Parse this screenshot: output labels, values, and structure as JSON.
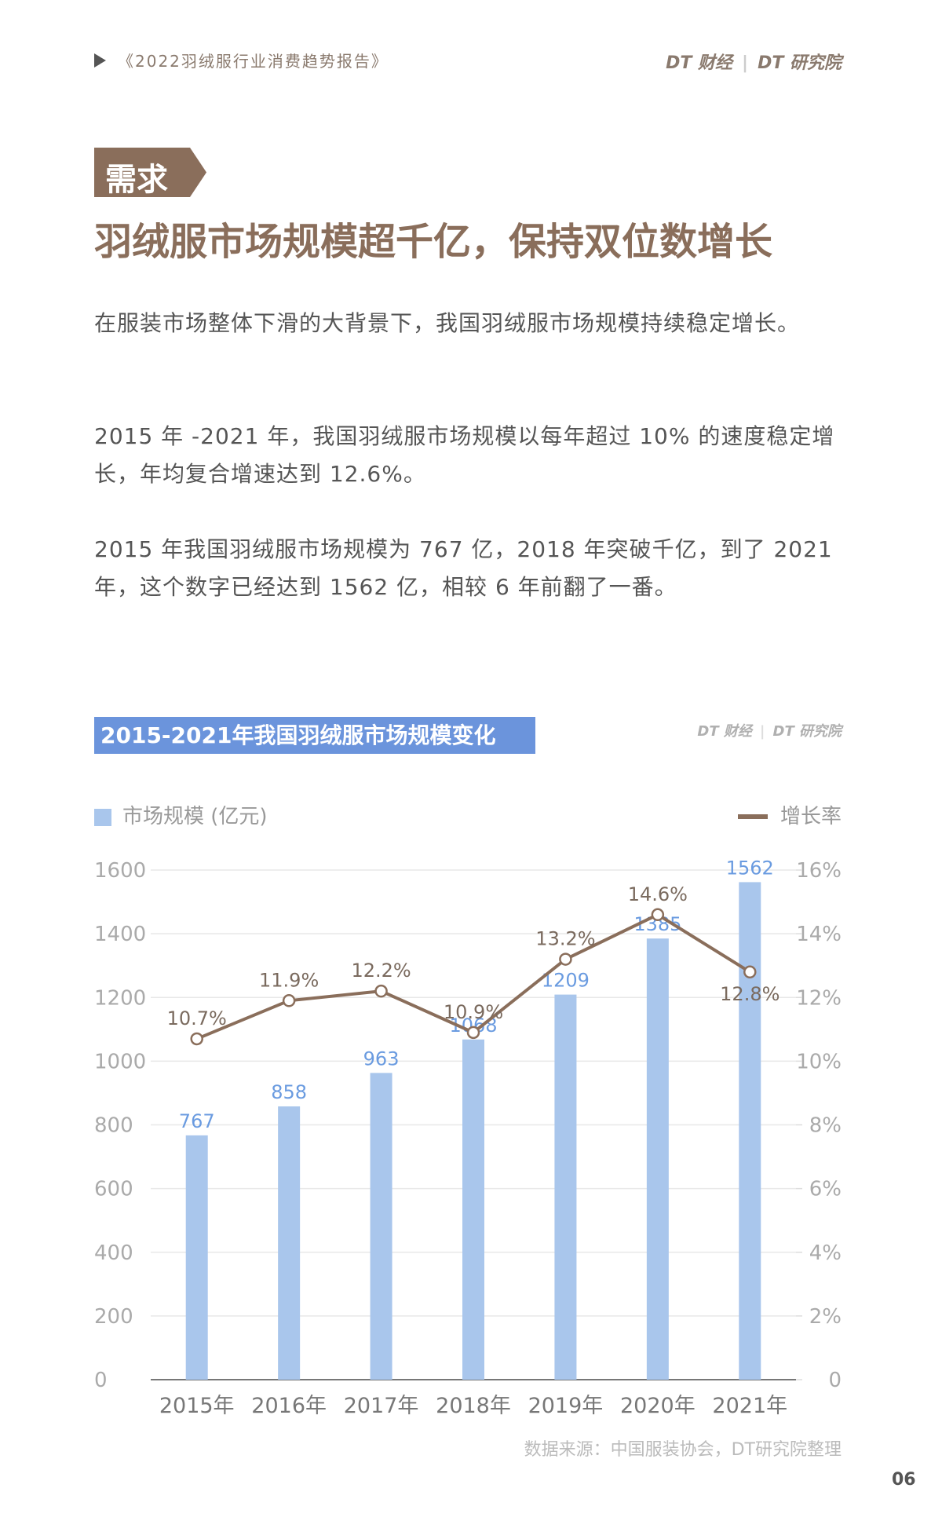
{
  "header": {
    "report": "《2022羽绒服行业消费趋势报告》",
    "brand1": "DT 财经",
    "brand2": "DT 研究院"
  },
  "section": {
    "tag": "需求",
    "title": "羽绒服市场规模超千亿，保持双位数增长"
  },
  "paragraphs": [
    "在服装市场整体下滑的大背景下，我国羽绒服市场规模持续稳定增长。",
    "2015 年 -2021 年，我国羽绒服市场规模以每年超过 10% 的速度稳定增长，年均复合增速达到 12.6%。",
    "2015 年我国羽绒服市场规模为 767 亿，2018 年突破千亿，到了 2021 年，这个数字已经达到 1562 亿，相较 6 年前翻了一番。"
  ],
  "chart_data": {
    "type": "bar",
    "title": "2015-2021年我国羽绒服市场规模变化",
    "logo": [
      "DT 财经",
      "DT 研究院"
    ],
    "categories": [
      "2015年",
      "2016年",
      "2017年",
      "2018年",
      "2019年",
      "2020年",
      "2021年"
    ],
    "series": [
      {
        "name": "市场规模 (亿元)",
        "type": "bar",
        "color": "#a9c6ec",
        "label_color": "#6a9be0",
        "values": [
          767,
          858,
          963,
          1068,
          1209,
          1385,
          1562
        ]
      },
      {
        "name": "增长率",
        "type": "line",
        "axis": "y2",
        "color": "#8a6e5b",
        "values": [
          10.7,
          11.9,
          12.2,
          10.9,
          13.2,
          14.6,
          12.8
        ],
        "value_labels": [
          "10.7%",
          "11.9%",
          "12.2%",
          "10.9%",
          "13.2%",
          "14.6%",
          "12.8%"
        ]
      }
    ],
    "ylim": [
      0,
      1600
    ],
    "yticks": [
      0,
      200,
      400,
      600,
      800,
      1000,
      1200,
      1400,
      1600
    ],
    "y2lim": [
      0,
      16
    ],
    "y2ticks": [
      0,
      {
        "value": 2,
        "label": "2%"
      },
      {
        "value": 4,
        "label": "4%"
      },
      {
        "value": 6,
        "label": "6%"
      },
      {
        "value": 8,
        "label": "8%"
      },
      {
        "value": 10,
        "label": "10%"
      },
      {
        "value": 12,
        "label": "12%"
      },
      {
        "value": 14,
        "label": "14%"
      },
      {
        "value": 16,
        "label": "16%"
      }
    ],
    "grid": true,
    "source": "数据来源：中国服装协会，DT研究院整理"
  },
  "page_number": "06"
}
